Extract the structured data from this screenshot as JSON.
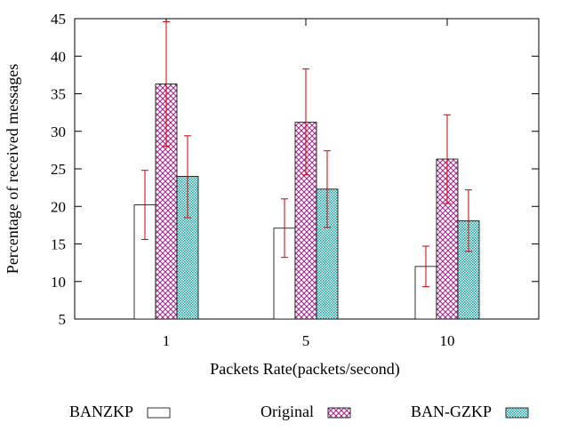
{
  "chart_data": {
    "type": "bar",
    "title": "",
    "xlabel": "Packets Rate(packets/second)",
    "ylabel": "Percentage of received messages",
    "ylim": [
      5,
      45
    ],
    "yticks": [
      5,
      10,
      15,
      20,
      25,
      30,
      35,
      40,
      45
    ],
    "categories": [
      "1",
      "5",
      "10"
    ],
    "series": [
      {
        "name": "BANZKP",
        "pattern": "none",
        "values": [
          20.2,
          17.1,
          12.0
        ],
        "err_low": [
          15.6,
          13.2,
          9.3
        ],
        "err_high": [
          24.8,
          21.0,
          14.7
        ]
      },
      {
        "name": "Original",
        "pattern": "crosshatch",
        "color": "#a0208c",
        "values": [
          36.3,
          31.2,
          26.3
        ],
        "err_low": [
          28.0,
          24.2,
          20.4
        ],
        "err_high": [
          44.6,
          38.3,
          32.2
        ]
      },
      {
        "name": "BAN-GZKP",
        "pattern": "dots",
        "color": "#1aa7a7",
        "values": [
          24.0,
          22.3,
          18.1
        ],
        "err_low": [
          18.5,
          17.2,
          14.0
        ],
        "err_high": [
          29.4,
          27.4,
          22.2
        ]
      }
    ],
    "error_bar_color": "#cc0000",
    "legend_position": "bottom",
    "grid": false
  }
}
